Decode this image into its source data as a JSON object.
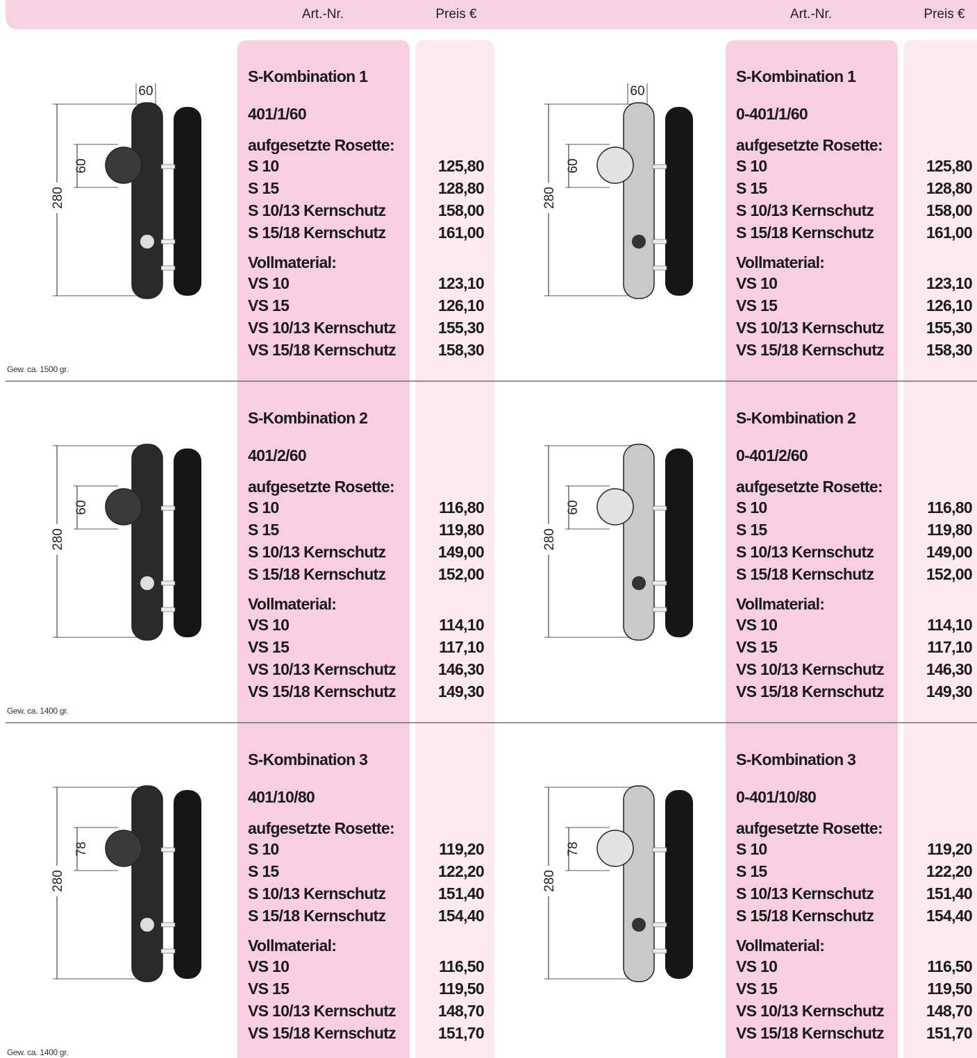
{
  "header": {
    "columns": [
      {
        "art_nr": "Art.-Nr.",
        "preis": "Preis €"
      },
      {
        "art_nr": "Art.-Nr.",
        "preis": "Preis €"
      }
    ]
  },
  "products": [
    {
      "title": "S-Kombination 1",
      "art_nr": "401/1/60",
      "dims": {
        "width": "60",
        "knob": "60",
        "height": "280"
      },
      "weight": "Gew. ca. 1500 gr.",
      "groups": [
        {
          "label": "aufgesetzte Rosette:",
          "items": [
            {
              "name": "S 10",
              "price": "125,80"
            },
            {
              "name": "S 15",
              "price": "128,80"
            },
            {
              "name": "S 10/13 Kernschutz",
              "price": "158,00"
            },
            {
              "name": "S 15/18 Kernschutz",
              "price": "161,00"
            }
          ]
        },
        {
          "label": "Vollmaterial:",
          "items": [
            {
              "name": "VS 10",
              "price": "123,10"
            },
            {
              "name": "VS 15",
              "price": "126,10"
            },
            {
              "name": "VS 10/13 Kernschutz",
              "price": "155,30"
            },
            {
              "name": "VS 15/18 Kernschutz",
              "price": "158,30"
            }
          ]
        }
      ]
    },
    {
      "title": "S-Kombination 1",
      "art_nr": "0-401/1/60",
      "dims": {
        "width": "60",
        "knob": "60",
        "height": "280"
      },
      "groups": [
        {
          "label": "aufgesetzte Rosette:",
          "items": [
            {
              "name": "S 10",
              "price": "125,80"
            },
            {
              "name": "S 15",
              "price": "128,80"
            },
            {
              "name": "S 10/13 Kernschutz",
              "price": "158,00"
            },
            {
              "name": "S 15/18 Kernschutz",
              "price": "161,00"
            }
          ]
        },
        {
          "label": "Vollmaterial:",
          "items": [
            {
              "name": "VS 10",
              "price": "123,10"
            },
            {
              "name": "VS 15",
              "price": "126,10"
            },
            {
              "name": "VS 10/13 Kernschutz",
              "price": "155,30"
            },
            {
              "name": "VS 15/18 Kernschutz",
              "price": "158,30"
            }
          ]
        }
      ]
    },
    {
      "title": "S-Kombination 2",
      "art_nr": "401/2/60",
      "dims": {
        "knob": "60",
        "height": "280"
      },
      "weight": "Gew. ca. 1400 gr.",
      "groups": [
        {
          "label": "aufgesetzte Rosette:",
          "items": [
            {
              "name": "S 10",
              "price": "116,80"
            },
            {
              "name": "S 15",
              "price": "119,80"
            },
            {
              "name": "S 10/13 Kernschutz",
              "price": "149,00"
            },
            {
              "name": "S 15/18 Kernschutz",
              "price": "152,00"
            }
          ]
        },
        {
          "label": "Vollmaterial:",
          "items": [
            {
              "name": "VS 10",
              "price": "114,10"
            },
            {
              "name": "VS 15",
              "price": "117,10"
            },
            {
              "name": "VS 10/13 Kernschutz",
              "price": "146,30"
            },
            {
              "name": "VS 15/18 Kernschutz",
              "price": "149,30"
            }
          ]
        }
      ]
    },
    {
      "title": "S-Kombination 2",
      "art_nr": "0-401/2/60",
      "dims": {
        "knob": "60",
        "height": "280"
      },
      "groups": [
        {
          "label": "aufgesetzte Rosette:",
          "items": [
            {
              "name": "S 10",
              "price": "116,80"
            },
            {
              "name": "S 15",
              "price": "119,80"
            },
            {
              "name": "S 10/13 Kernschutz",
              "price": "149,00"
            },
            {
              "name": "S 15/18 Kernschutz",
              "price": "152,00"
            }
          ]
        },
        {
          "label": "Vollmaterial:",
          "items": [
            {
              "name": "VS 10",
              "price": "114,10"
            },
            {
              "name": "VS 15",
              "price": "117,10"
            },
            {
              "name": "VS 10/13 Kernschutz",
              "price": "146,30"
            },
            {
              "name": "VS 15/18 Kernschutz",
              "price": "149,30"
            }
          ]
        }
      ]
    },
    {
      "title": "S-Kombination 3",
      "art_nr": "401/10/80",
      "dims": {
        "knob": "78",
        "height": "280"
      },
      "weight": "Gew. ca. 1400 gr.",
      "groups": [
        {
          "label": "aufgesetzte Rosette:",
          "items": [
            {
              "name": "S 10",
              "price": "119,20"
            },
            {
              "name": "S 15",
              "price": "122,20"
            },
            {
              "name": "S 10/13 Kernschutz",
              "price": "151,40"
            },
            {
              "name": "S 15/18 Kernschutz",
              "price": "154,40"
            }
          ]
        },
        {
          "label": "Vollmaterial:",
          "items": [
            {
              "name": "VS 10",
              "price": "116,50"
            },
            {
              "name": "VS 15",
              "price": "119,50"
            },
            {
              "name": "VS 10/13 Kernschutz",
              "price": "148,70"
            },
            {
              "name": "VS 15/18 Kernschutz",
              "price": "151,70"
            }
          ]
        }
      ]
    },
    {
      "title": "S-Kombination 3",
      "art_nr": "0-401/10/80",
      "dims": {
        "knob": "78",
        "height": "280"
      },
      "groups": [
        {
          "label": "aufgesetzte Rosette:",
          "items": [
            {
              "name": "S 10",
              "price": "119,20"
            },
            {
              "name": "S 15",
              "price": "122,20"
            },
            {
              "name": "S 10/13 Kernschutz",
              "price": "151,40"
            },
            {
              "name": "S 15/18 Kernschutz",
              "price": "154,40"
            }
          ]
        },
        {
          "label": "Vollmaterial:",
          "items": [
            {
              "name": "VS 10",
              "price": "116,50"
            },
            {
              "name": "VS 15",
              "price": "119,50"
            },
            {
              "name": "VS 10/13 Kernschutz",
              "price": "148,70"
            },
            {
              "name": "VS 15/18 Kernschutz",
              "price": "151,70"
            }
          ]
        }
      ]
    }
  ]
}
